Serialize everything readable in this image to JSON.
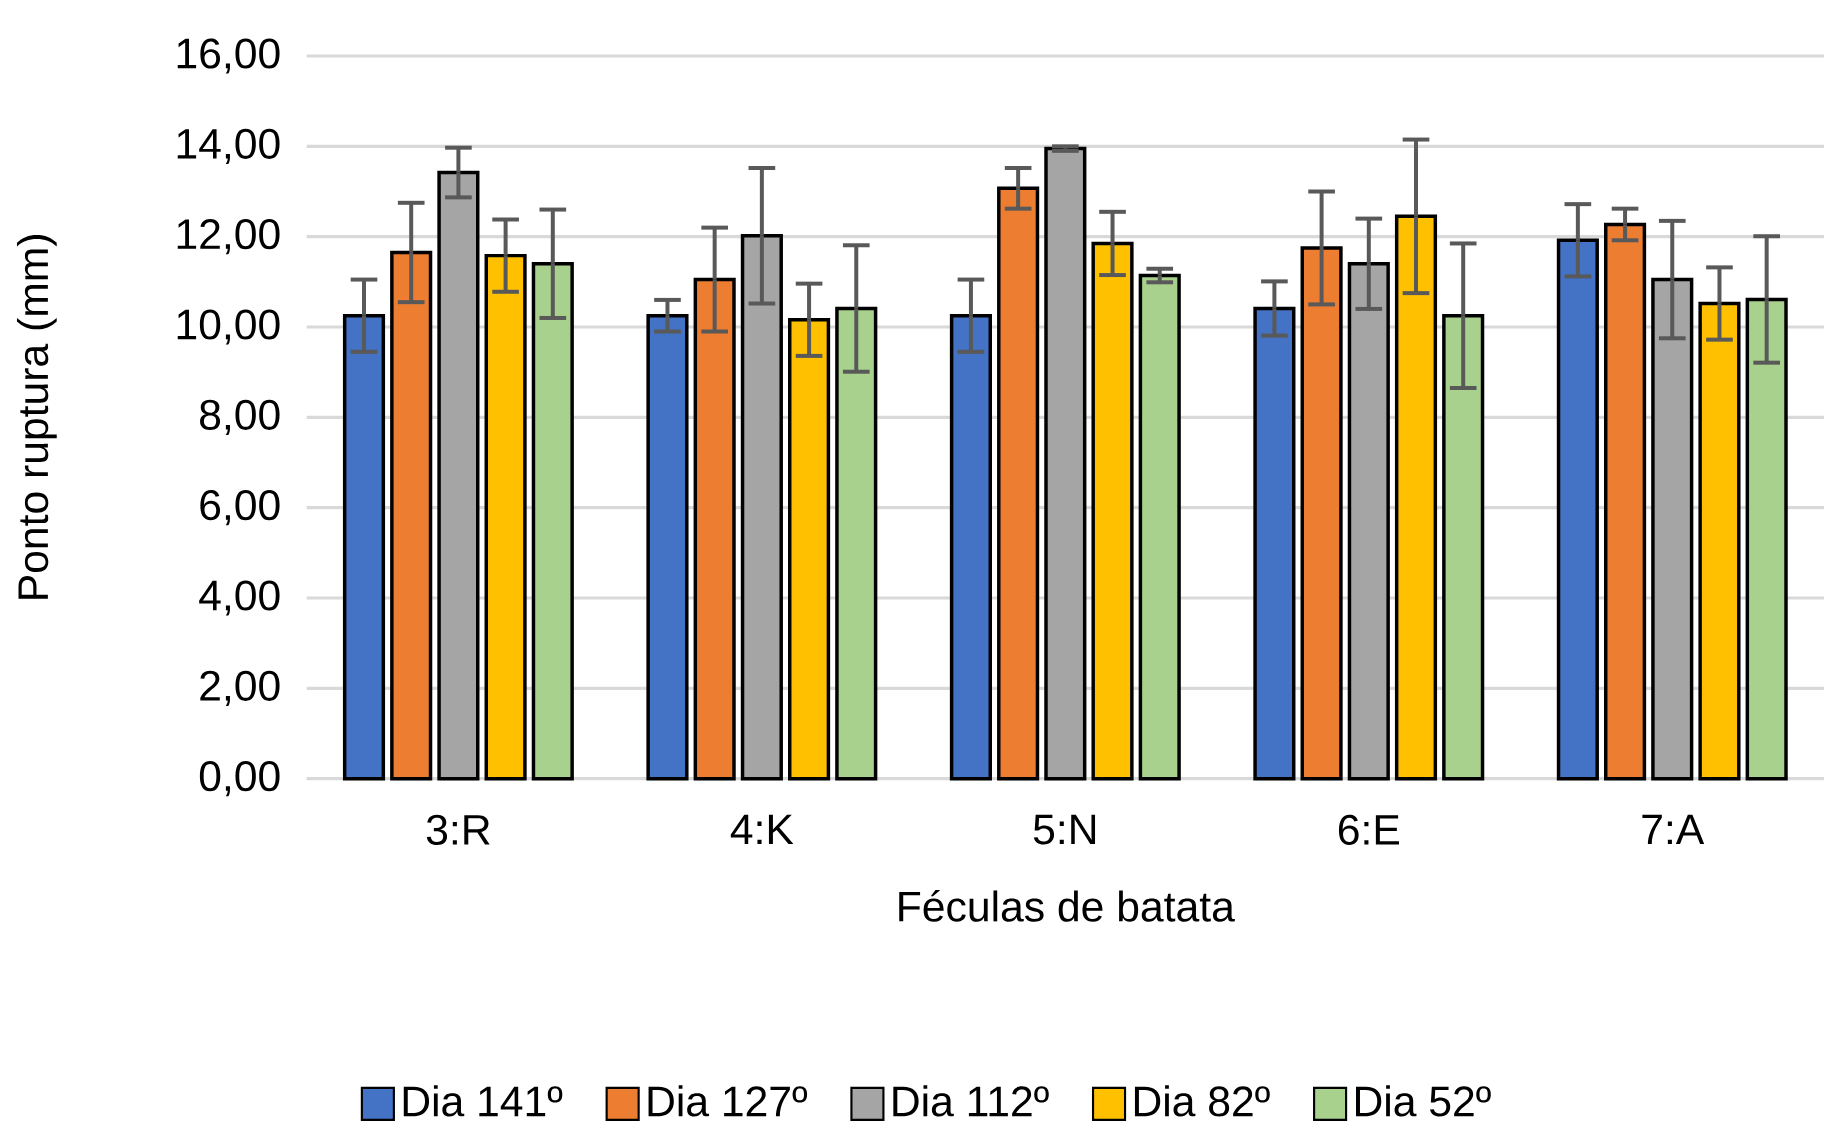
{
  "chart_data": {
    "type": "bar",
    "xlabel": "Féculas de batata",
    "ylabel": "Ponto ruptura  (mm)",
    "categories": [
      "3:R",
      "4:K",
      "5:N",
      "6:E",
      "7:A"
    ],
    "series": [
      {
        "name": "Dia 141º",
        "color": "#4472c4",
        "values": [
          10.25,
          10.25,
          10.25,
          10.41,
          11.92
        ],
        "errors": [
          0.8,
          0.35,
          0.8,
          0.6,
          0.8
        ]
      },
      {
        "name": "Dia 127º",
        "color": "#ed7d31",
        "values": [
          11.65,
          11.05,
          13.07,
          11.75,
          12.27
        ],
        "errors": [
          1.1,
          1.15,
          0.45,
          1.25,
          0.35
        ]
      },
      {
        "name": "Dia 112º",
        "color": "#a5a5a5",
        "values": [
          13.42,
          12.02,
          13.95,
          11.4,
          11.05
        ],
        "errors": [
          0.55,
          1.5,
          0.05,
          1.0,
          1.3
        ]
      },
      {
        "name": "Dia 82º",
        "color": "#ffc000",
        "values": [
          11.58,
          10.16,
          11.85,
          12.45,
          10.52
        ],
        "errors": [
          0.8,
          0.8,
          0.7,
          1.7,
          0.8
        ]
      },
      {
        "name": "Dia 52º",
        "color": "#a9d18e",
        "values": [
          11.4,
          10.41,
          11.14,
          10.25,
          10.61
        ],
        "errors": [
          1.2,
          1.4,
          0.15,
          1.6,
          1.4
        ]
      }
    ],
    "ylim": [
      0,
      16
    ],
    "yticks": [
      {
        "value": 0,
        "label": "0,00"
      },
      {
        "value": 2,
        "label": "2,00"
      },
      {
        "value": 4,
        "label": "4,00"
      },
      {
        "value": 6,
        "label": "6,00"
      },
      {
        "value": 8,
        "label": "8,00"
      },
      {
        "value": 10,
        "label": "10,00"
      },
      {
        "value": 12,
        "label": "12,00"
      },
      {
        "value": 14,
        "label": "14,00"
      },
      {
        "value": 16,
        "label": "16,00"
      }
    ],
    "grid": "y",
    "legend": "bottom"
  }
}
